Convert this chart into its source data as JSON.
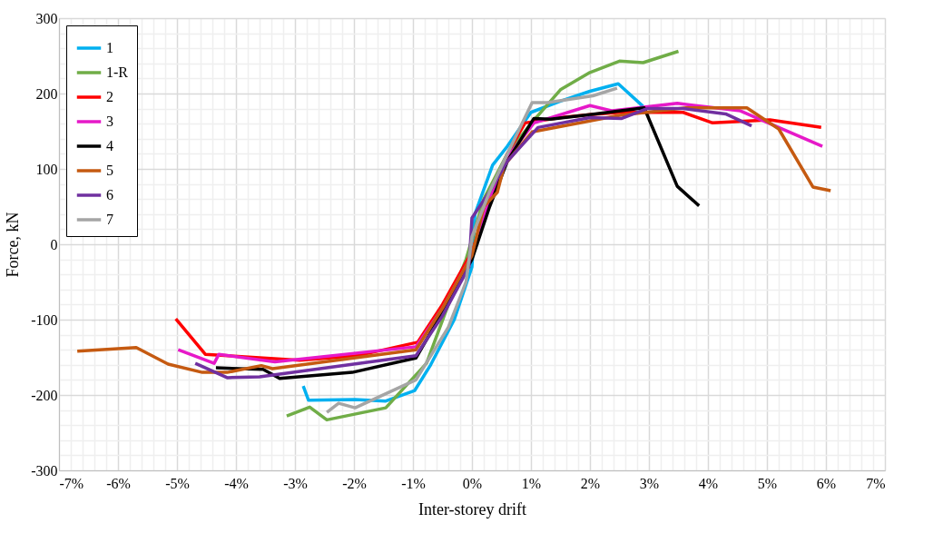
{
  "chart_data": {
    "type": "line",
    "xlabel": "Inter-storey drift",
    "ylabel": "Force, kN",
    "xlim": [
      -7,
      7
    ],
    "ylim": [
      -300,
      300
    ],
    "xticks": [
      {
        "value": -7,
        "label": "-7%"
      },
      {
        "value": -6,
        "label": "-6%"
      },
      {
        "value": -5,
        "label": "-5%"
      },
      {
        "value": -4,
        "label": "-4%"
      },
      {
        "value": -3,
        "label": "-3%"
      },
      {
        "value": -2,
        "label": "-2%"
      },
      {
        "value": -1,
        "label": "-1%"
      },
      {
        "value": 0,
        "label": "0%"
      },
      {
        "value": 1,
        "label": "1%"
      },
      {
        "value": 2,
        "label": "2%"
      },
      {
        "value": 3,
        "label": "3%"
      },
      {
        "value": 4,
        "label": "4%"
      },
      {
        "value": 5,
        "label": "5%"
      },
      {
        "value": 6,
        "label": "6%"
      },
      {
        "value": 7,
        "label": "7%"
      }
    ],
    "yticks": [
      -300,
      -200,
      -100,
      0,
      100,
      200,
      300
    ],
    "grid": true,
    "legend": "top left",
    "marker": "none",
    "line_style": "solid",
    "series": [
      {
        "name": "1",
        "color": "#00b0f0",
        "x": [
          -2.86,
          -2.77,
          -1.98,
          -1.46,
          -0.97,
          -0.7,
          -0.3,
          0,
          0.05,
          0.35,
          0.6,
          1.0,
          1.5,
          2.0,
          2.48,
          2.9
        ],
        "values": [
          -188,
          -207,
          -206,
          -208,
          -194,
          -160,
          -100,
          -30,
          40,
          105,
          130,
          175,
          190,
          203,
          213,
          183
        ]
      },
      {
        "name": "1-R",
        "color": "#70ad47",
        "x": [
          -3.14,
          -2.75,
          -2.46,
          -1.46,
          -0.77,
          -0.4,
          -0.1,
          0.2,
          0.6,
          1.0,
          1.5,
          2.0,
          2.5,
          2.9,
          3.5
        ],
        "values": [
          -228,
          -216,
          -233,
          -217,
          -158,
          -80,
          -20,
          60,
          120,
          160,
          205,
          228,
          243,
          241,
          256
        ]
      },
      {
        "name": "2",
        "color": "#ff0000",
        "x": [
          -5.02,
          -4.52,
          -2.92,
          -1.95,
          -0.92,
          -0.5,
          0,
          0.3,
          0.6,
          0.9,
          1.5,
          2.0,
          2.5,
          3.0,
          3.58,
          4.08,
          5.05,
          5.92
        ],
        "values": [
          -99,
          -146,
          -154,
          -148,
          -130,
          -80,
          -10,
          60,
          120,
          161,
          168,
          172,
          175,
          175,
          175,
          161,
          165,
          155
        ]
      },
      {
        "name": "3",
        "color": "#e619c8",
        "x": [
          -4.98,
          -4.37,
          -4.29,
          -3.34,
          -0.95,
          -0.5,
          0,
          0.3,
          0.6,
          1.05,
          2.0,
          2.38,
          3.48,
          4.55,
          5.94
        ],
        "values": [
          -140,
          -158,
          -146,
          -156,
          -136,
          -85,
          -15,
          60,
          115,
          161,
          184,
          177,
          187,
          177,
          130
        ]
      },
      {
        "name": "4",
        "color": "#000000",
        "x": [
          -4.34,
          -3.54,
          -3.26,
          -2.03,
          -0.95,
          -0.5,
          0,
          0.3,
          0.6,
          1.05,
          1.33,
          2.0,
          2.92,
          3.48,
          3.85
        ],
        "values": [
          -164,
          -166,
          -178,
          -170,
          -151,
          -90,
          -20,
          50,
          110,
          167,
          166,
          172,
          181,
          77,
          51
        ]
      },
      {
        "name": "5",
        "color": "#c55a11",
        "x": [
          -6.69,
          -5.69,
          -5.15,
          -4.57,
          -4.15,
          -3.57,
          -3.38,
          -0.95,
          -0.5,
          0,
          0.2,
          0.43,
          0.55,
          1.02,
          2.5,
          3.63,
          4.66,
          5.2,
          5.78,
          6.08
        ],
        "values": [
          -142,
          -137,
          -159,
          -170,
          -170,
          -161,
          -165,
          -140,
          -85,
          -15,
          50,
          69,
          105,
          149,
          171,
          181,
          181,
          153,
          76,
          71
        ]
      },
      {
        "name": "6",
        "color": "#7030a0",
        "x": [
          -4.69,
          -4.15,
          -3.6,
          -0.95,
          -0.5,
          -0.05,
          0,
          0.3,
          0.6,
          1.12,
          2.0,
          2.54,
          2.97,
          3.58,
          4.3,
          4.74
        ],
        "values": [
          -158,
          -177,
          -176,
          -148,
          -95,
          -30,
          35,
          70,
          110,
          155,
          168,
          167,
          180,
          180,
          173,
          157
        ]
      },
      {
        "name": "7",
        "color": "#a5a5a5",
        "x": [
          -2.46,
          -2.26,
          -1.98,
          -0.95,
          -0.4,
          -0.1,
          0,
          0.3,
          0.6,
          1.02,
          1.28,
          2.05,
          2.46
        ],
        "values": [
          -223,
          -211,
          -217,
          -180,
          -110,
          -50,
          10,
          70,
          120,
          188,
          188,
          197,
          207
        ]
      }
    ]
  }
}
